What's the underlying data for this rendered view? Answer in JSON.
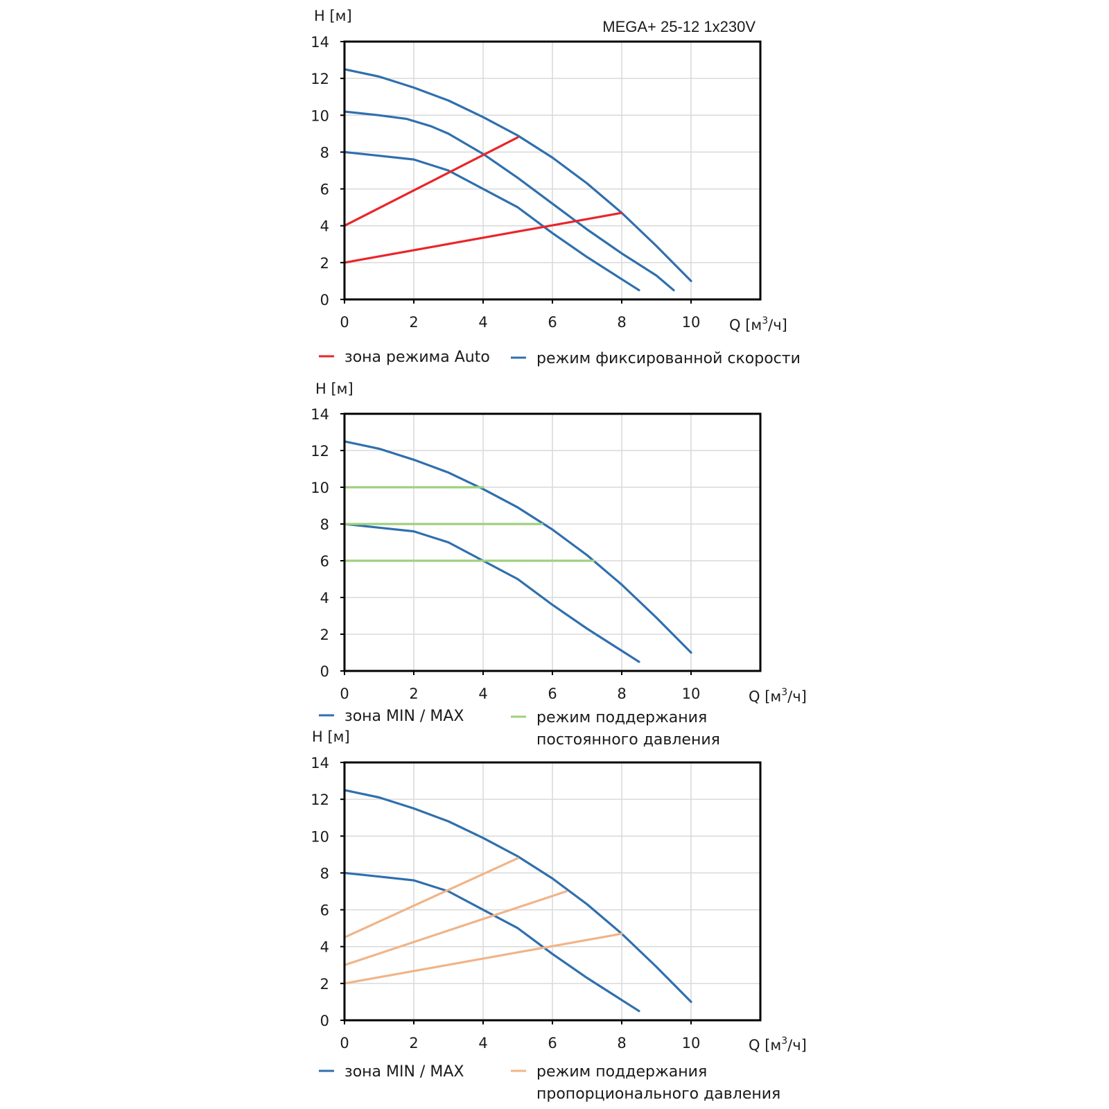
{
  "colors": {
    "blue": "#2f6fae",
    "red": "#e8262b",
    "green": "#9fd07e",
    "orange": "#f0b488"
  },
  "chart_data": [
    {
      "type": "line",
      "title": "MEGA+ 25-12 1x230V",
      "ylabel": "H [м]",
      "xlabel_main": "Q [м",
      "xlabel_sup": "3",
      "xlabel_tail": "/ч]",
      "xlim": [
        0,
        12
      ],
      "ylim": [
        0,
        14
      ],
      "xticks": [
        "0",
        "2",
        "4",
        "6",
        "8",
        "10"
      ],
      "yticks": [
        "0",
        "2",
        "4",
        "6",
        "8",
        "10",
        "12",
        "14"
      ],
      "grid": true,
      "legend": [
        {
          "label": "зона режима Auto",
          "color_key": "red"
        },
        {
          "label": "режим фиксированной скорости",
          "color_key": "blue"
        }
      ],
      "series": [
        {
          "color_key": "blue",
          "points": [
            [
              0,
              12.5
            ],
            [
              1,
              12.1
            ],
            [
              2,
              11.5
            ],
            [
              3,
              10.8
            ],
            [
              4,
              9.9
            ],
            [
              5,
              8.9
            ],
            [
              6,
              7.7
            ],
            [
              7,
              6.3
            ],
            [
              8,
              4.7
            ],
            [
              9,
              2.9
            ],
            [
              10,
              1.0
            ]
          ]
        },
        {
          "color_key": "blue",
          "points": [
            [
              0,
              10.2
            ],
            [
              1,
              10.0
            ],
            [
              1.8,
              9.8
            ],
            [
              2.5,
              9.4
            ],
            [
              3,
              9.0
            ],
            [
              4,
              7.9
            ],
            [
              5,
              6.6
            ],
            [
              6,
              5.2
            ],
            [
              7,
              3.8
            ],
            [
              8,
              2.5
            ],
            [
              9,
              1.3
            ],
            [
              9.5,
              0.5
            ]
          ]
        },
        {
          "color_key": "blue",
          "points": [
            [
              0,
              8.0
            ],
            [
              1,
              7.8
            ],
            [
              2,
              7.6
            ],
            [
              3,
              7.0
            ],
            [
              4,
              6.0
            ],
            [
              5,
              5.0
            ],
            [
              6,
              3.6
            ],
            [
              7,
              2.3
            ],
            [
              8,
              1.1
            ],
            [
              8.5,
              0.5
            ]
          ]
        },
        {
          "color_key": "red",
          "points": [
            [
              0,
              4.0
            ],
            [
              5,
              8.8
            ]
          ]
        },
        {
          "color_key": "red",
          "points": [
            [
              0,
              2.0
            ],
            [
              8,
              4.7
            ]
          ]
        }
      ]
    },
    {
      "type": "line",
      "title": "",
      "ylabel": "H [м]",
      "xlabel_main": "Q [м",
      "xlabel_sup": "3",
      "xlabel_tail": "/ч]",
      "xlim": [
        0,
        12
      ],
      "ylim": [
        0,
        14
      ],
      "xticks": [
        "0",
        "2",
        "4",
        "6",
        "8",
        "10"
      ],
      "yticks": [
        "0",
        "2",
        "4",
        "6",
        "8",
        "10",
        "12",
        "14"
      ],
      "grid": true,
      "legend": [
        {
          "label": "зона MIN / MAX",
          "color_key": "blue"
        },
        {
          "label": "режим поддержания",
          "label2": "постоянного давления",
          "color_key": "green"
        }
      ],
      "series": [
        {
          "color_key": "blue",
          "points": [
            [
              0,
              12.5
            ],
            [
              1,
              12.1
            ],
            [
              2,
              11.5
            ],
            [
              3,
              10.8
            ],
            [
              4,
              9.9
            ],
            [
              5,
              8.9
            ],
            [
              6,
              7.7
            ],
            [
              7,
              6.3
            ],
            [
              8,
              4.7
            ],
            [
              9,
              2.9
            ],
            [
              10,
              1.0
            ]
          ]
        },
        {
          "color_key": "blue",
          "points": [
            [
              0,
              8.0
            ],
            [
              1,
              7.8
            ],
            [
              2,
              7.6
            ],
            [
              3,
              7.0
            ],
            [
              4,
              6.0
            ],
            [
              5,
              5.0
            ],
            [
              6,
              3.6
            ],
            [
              7,
              2.3
            ],
            [
              8,
              1.1
            ],
            [
              8.5,
              0.5
            ]
          ]
        },
        {
          "color_key": "green",
          "points": [
            [
              0,
              10.0
            ],
            [
              4,
              10.0
            ]
          ]
        },
        {
          "color_key": "green",
          "points": [
            [
              0,
              8.0
            ],
            [
              5.7,
              8.0
            ]
          ]
        },
        {
          "color_key": "green",
          "points": [
            [
              0,
              6.0
            ],
            [
              7.2,
              6.0
            ]
          ]
        }
      ]
    },
    {
      "type": "line",
      "title": "",
      "ylabel": "H [м]",
      "xlabel_main": "Q [м",
      "xlabel_sup": "3",
      "xlabel_tail": "/ч]",
      "xlim": [
        0,
        12
      ],
      "ylim": [
        0,
        14
      ],
      "xticks": [
        "0",
        "2",
        "4",
        "6",
        "8",
        "10"
      ],
      "yticks": [
        "0",
        "2",
        "4",
        "6",
        "8",
        "10",
        "12",
        "14"
      ],
      "grid": true,
      "legend": [
        {
          "label": "зона MIN / MAX",
          "color_key": "blue"
        },
        {
          "label": "режим поддержания",
          "label2": "пропорционального давления",
          "color_key": "orange"
        }
      ],
      "series": [
        {
          "color_key": "blue",
          "points": [
            [
              0,
              12.5
            ],
            [
              1,
              12.1
            ],
            [
              2,
              11.5
            ],
            [
              3,
              10.8
            ],
            [
              4,
              9.9
            ],
            [
              5,
              8.9
            ],
            [
              6,
              7.7
            ],
            [
              7,
              6.3
            ],
            [
              8,
              4.7
            ],
            [
              9,
              2.9
            ],
            [
              10,
              1.0
            ]
          ]
        },
        {
          "color_key": "blue",
          "points": [
            [
              0,
              8.0
            ],
            [
              1,
              7.8
            ],
            [
              2,
              7.6
            ],
            [
              3,
              7.0
            ],
            [
              4,
              6.0
            ],
            [
              5,
              5.0
            ],
            [
              6,
              3.6
            ],
            [
              7,
              2.3
            ],
            [
              8,
              1.1
            ],
            [
              8.5,
              0.5
            ]
          ]
        },
        {
          "color_key": "orange",
          "points": [
            [
              0,
              4.5
            ],
            [
              5,
              8.8
            ]
          ]
        },
        {
          "color_key": "orange",
          "points": [
            [
              0,
              3.0
            ],
            [
              6.4,
              7.0
            ]
          ]
        },
        {
          "color_key": "orange",
          "points": [
            [
              0,
              2.0
            ],
            [
              8,
              4.7
            ]
          ]
        }
      ]
    }
  ]
}
